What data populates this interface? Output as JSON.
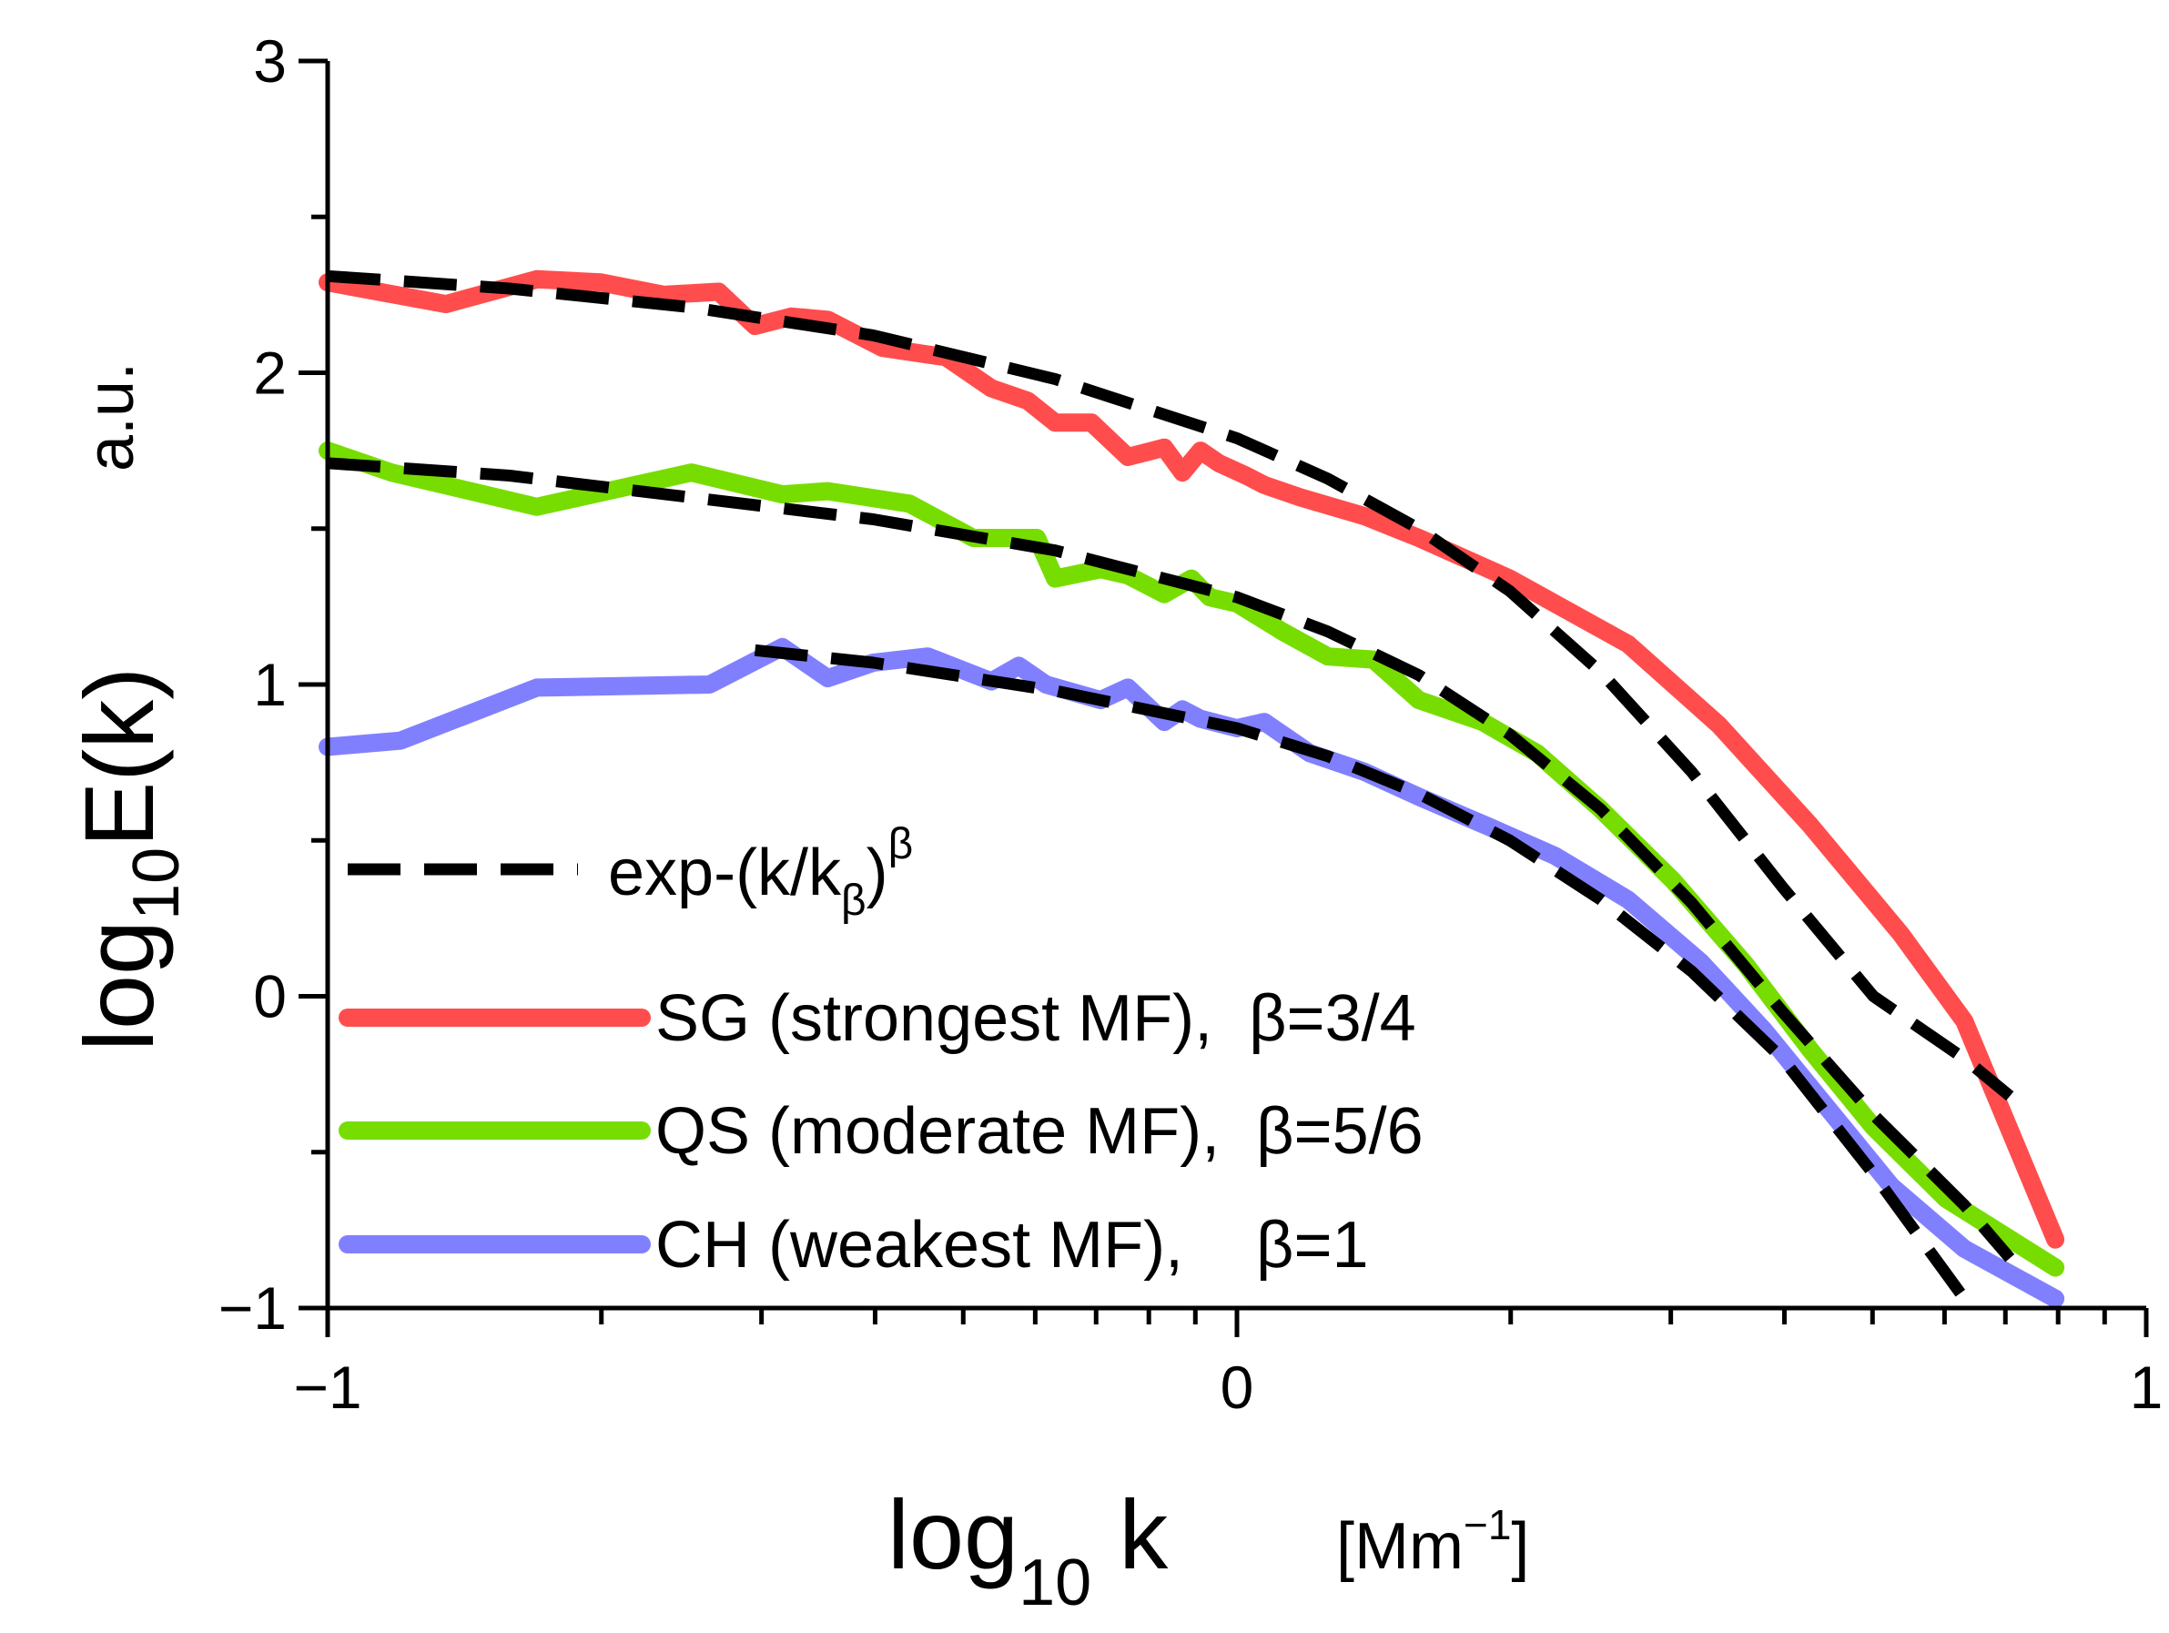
{
  "chart_data": {
    "type": "line",
    "title": "",
    "xlim": [
      -1,
      1
    ],
    "ylim": [
      -1,
      3
    ],
    "xticks": [
      -1,
      0,
      1
    ],
    "yticks": [
      -1,
      0,
      1,
      2,
      3
    ],
    "xtick_labels": [
      "−1",
      "0",
      "1"
    ],
    "ytick_labels": [
      "−1",
      "0",
      "1",
      "2",
      "3"
    ],
    "xlabel": {
      "main": "log",
      "sub": "10",
      "var": " k",
      "unit_open": "[Mm",
      "unit_sup": "−1",
      "unit_close": "]"
    },
    "ylabel": {
      "main": "log",
      "sub": "10",
      "var": "E(k)",
      "unit": "a.u."
    },
    "grid": false,
    "legend_position": "lower-left",
    "legend": {
      "fit": {
        "text": "exp-(k/k",
        "sub": "β",
        "close": ")",
        "sup": "β"
      },
      "entries": [
        {
          "text": "SG (strongest MF),  β=3/4",
          "color": "#ff4d4d"
        },
        {
          "text": "QS (moderate MF),  β=5/6",
          "color": "#77dd00"
        },
        {
          "text": "CH (weakest MF),    β=1",
          "color": "#8080ff"
        }
      ]
    },
    "series": [
      {
        "name": "SG (strongest MF)",
        "color": "#ff4d4d",
        "x": [
          -1.0,
          -0.87,
          -0.77,
          -0.7,
          -0.63,
          -0.57,
          -0.53,
          -0.49,
          -0.45,
          -0.39,
          -0.32,
          -0.27,
          -0.23,
          -0.2,
          -0.16,
          -0.12,
          -0.08,
          -0.06,
          -0.04,
          -0.02,
          0.01,
          0.03,
          0.07,
          0.14,
          0.2,
          0.3,
          0.43,
          0.53,
          0.63,
          0.73,
          0.8,
          0.9
        ],
        "y": [
          2.29,
          2.22,
          2.3,
          2.29,
          2.25,
          2.26,
          2.15,
          2.18,
          2.17,
          2.08,
          2.05,
          1.95,
          1.91,
          1.84,
          1.84,
          1.73,
          1.76,
          1.68,
          1.75,
          1.71,
          1.67,
          1.64,
          1.6,
          1.54,
          1.47,
          1.34,
          1.13,
          0.87,
          0.55,
          0.2,
          -0.08,
          -0.78
        ]
      },
      {
        "name": "QS (moderate MF)",
        "color": "#77dd00",
        "x": [
          -1.0,
          -0.93,
          -0.77,
          -0.6,
          -0.5,
          -0.45,
          -0.36,
          -0.29,
          -0.22,
          -0.2,
          -0.15,
          -0.12,
          -0.08,
          -0.05,
          -0.03,
          0.0,
          0.05,
          0.1,
          0.15,
          0.2,
          0.27,
          0.33,
          0.4,
          0.48,
          0.56,
          0.63,
          0.7,
          0.78,
          0.9
        ],
        "y": [
          1.75,
          1.68,
          1.57,
          1.68,
          1.61,
          1.62,
          1.58,
          1.47,
          1.47,
          1.34,
          1.37,
          1.35,
          1.29,
          1.34,
          1.28,
          1.26,
          1.17,
          1.09,
          1.08,
          0.95,
          0.88,
          0.78,
          0.6,
          0.37,
          0.1,
          -0.17,
          -0.42,
          -0.65,
          -0.87
        ]
      },
      {
        "name": "CH (weakest MF)",
        "color": "#8080ff",
        "x": [
          -1.0,
          -0.92,
          -0.77,
          -0.58,
          -0.5,
          -0.45,
          -0.4,
          -0.34,
          -0.27,
          -0.24,
          -0.21,
          -0.15,
          -0.12,
          -0.08,
          -0.06,
          -0.04,
          0.0,
          0.03,
          0.08,
          0.14,
          0.2,
          0.28,
          0.35,
          0.43,
          0.51,
          0.58,
          0.65,
          0.72,
          0.8,
          0.9
        ],
        "y": [
          0.8,
          0.82,
          0.99,
          1.0,
          1.12,
          1.02,
          1.07,
          1.09,
          1.01,
          1.06,
          1.0,
          0.95,
          0.99,
          0.88,
          0.92,
          0.89,
          0.86,
          0.88,
          0.78,
          0.72,
          0.64,
          0.54,
          0.45,
          0.31,
          0.11,
          -0.11,
          -0.36,
          -0.61,
          -0.81,
          -0.97
        ]
      },
      {
        "name": "fit SG",
        "color": "#000000",
        "dashed": true,
        "x": [
          -1.0,
          -0.8,
          -0.6,
          -0.4,
          -0.2,
          0.0,
          0.1,
          0.2,
          0.3,
          0.4,
          0.5,
          0.6,
          0.7,
          0.8,
          0.85
        ],
        "y": [
          2.31,
          2.27,
          2.21,
          2.12,
          1.98,
          1.79,
          1.66,
          1.5,
          1.3,
          1.04,
          0.72,
          0.35,
          0.0,
          -0.2,
          -0.32
        ]
      },
      {
        "name": "fit QS",
        "color": "#000000",
        "dashed": true,
        "x": [
          -1.0,
          -0.8,
          -0.6,
          -0.4,
          -0.2,
          0.0,
          0.1,
          0.2,
          0.3,
          0.4,
          0.5,
          0.6,
          0.7,
          0.8,
          0.85
        ],
        "y": [
          1.71,
          1.67,
          1.6,
          1.53,
          1.43,
          1.28,
          1.17,
          1.03,
          0.84,
          0.6,
          0.3,
          -0.05,
          -0.38,
          -0.67,
          -0.84
        ]
      },
      {
        "name": "fit CH",
        "color": "#000000",
        "dashed": true,
        "x": [
          -0.53,
          -0.4,
          -0.2,
          0.0,
          0.1,
          0.2,
          0.3,
          0.4,
          0.5,
          0.6,
          0.7,
          0.8
        ],
        "y": [
          1.11,
          1.07,
          0.98,
          0.86,
          0.77,
          0.65,
          0.5,
          0.31,
          0.08,
          -0.2,
          -0.57,
          -0.97
        ]
      }
    ]
  }
}
